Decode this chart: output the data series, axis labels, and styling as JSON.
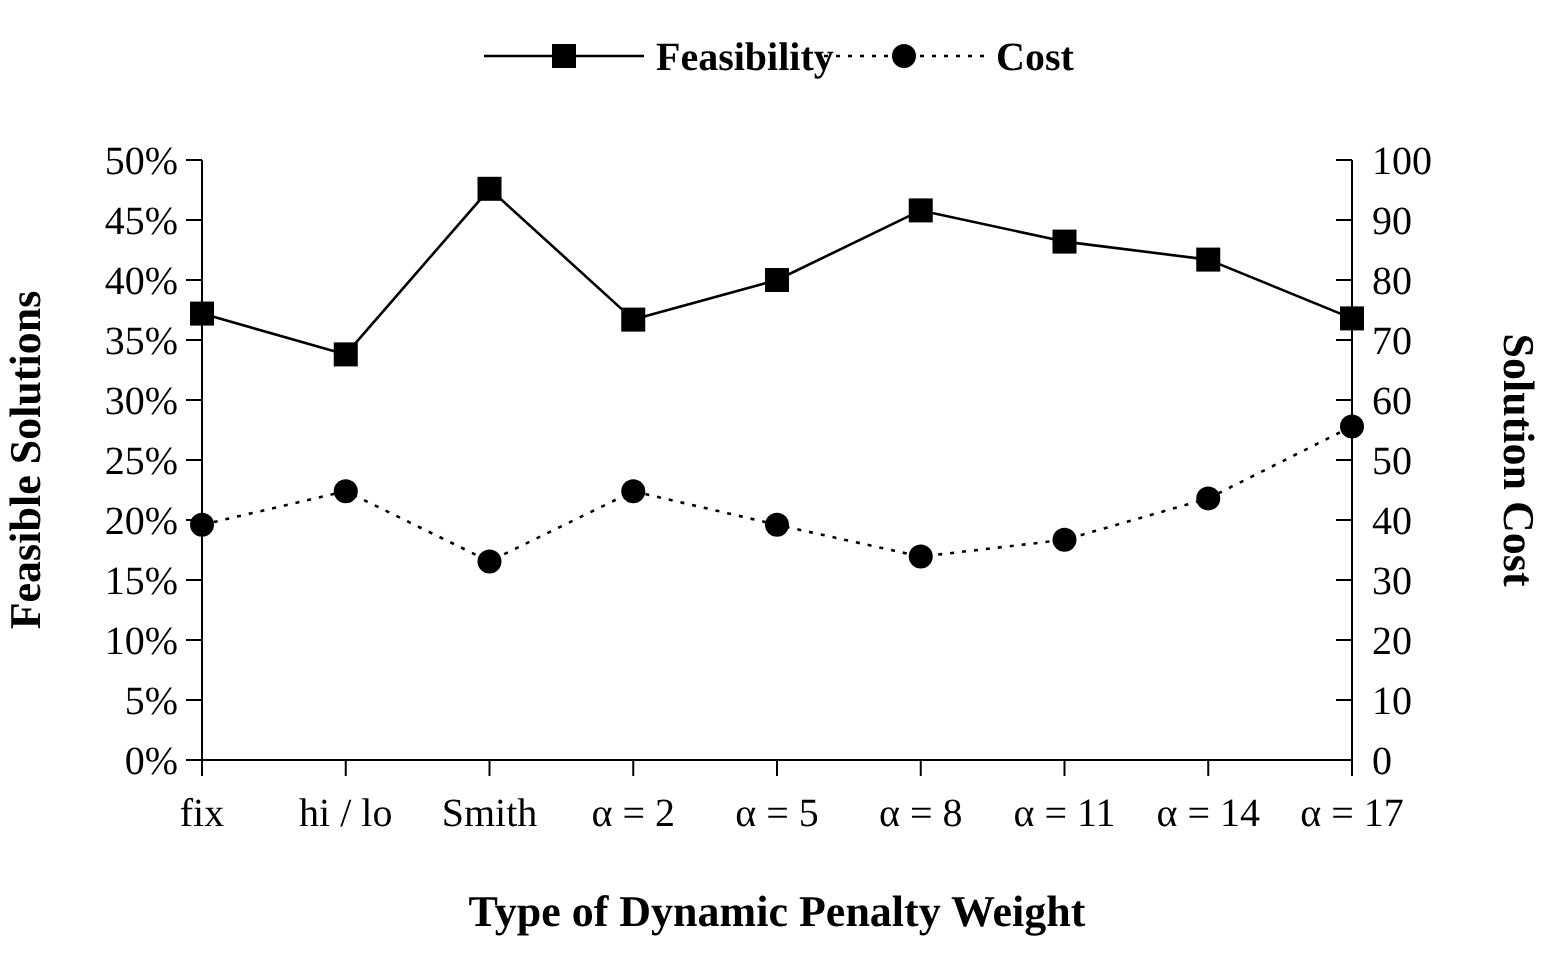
{
  "chart_data": {
    "type": "line",
    "xlabel": "Type of Dynamic Penalty Weight",
    "ylabel": "Feasible Solutions",
    "y2label": "Solution Cost",
    "categories": [
      "fix",
      "hi / lo",
      "Smith",
      "α = 2",
      "α = 5",
      "α = 8",
      "α = 11",
      "α = 14",
      "α = 17"
    ],
    "series": [
      {
        "name": "Feasibility",
        "color": "#000000",
        "marker": "square",
        "line_style": "solid",
        "values": [
          37.2,
          33.8,
          47.6,
          36.7,
          40.0,
          45.8,
          43.2,
          41.7,
          36.8
        ]
      },
      {
        "name": "Cost",
        "color": "#000000",
        "marker": "circle",
        "line_style": "dotted",
        "axis": "y2",
        "values": [
          39.2,
          44.8,
          33.1,
          44.8,
          39.2,
          33.9,
          36.7,
          43.6,
          55.6
        ]
      }
    ],
    "ylim": [
      0,
      50
    ],
    "yticks": [
      {
        "value": 0,
        "label": "0%"
      },
      {
        "value": 5,
        "label": "5%"
      },
      {
        "value": 10,
        "label": "10%"
      },
      {
        "value": 15,
        "label": "15%"
      },
      {
        "value": 20,
        "label": "20%"
      },
      {
        "value": 25,
        "label": "25%"
      },
      {
        "value": 30,
        "label": "30%"
      },
      {
        "value": 35,
        "label": "35%"
      },
      {
        "value": 40,
        "label": "40%"
      },
      {
        "value": 45,
        "label": "45%"
      },
      {
        "value": 50,
        "label": "50%"
      }
    ],
    "y2lim": [
      0,
      100
    ],
    "y2ticks": [
      0,
      10,
      20,
      30,
      40,
      50,
      60,
      70,
      80,
      90,
      100
    ],
    "grid": false,
    "legend": "top"
  }
}
